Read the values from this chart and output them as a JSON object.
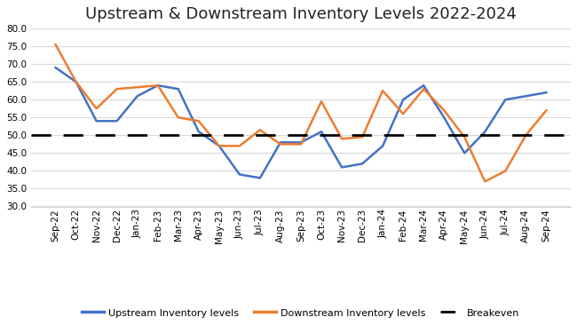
{
  "title": "Upstream & Downstream Inventory Levels 2022-2024",
  "categories": [
    "Sep-22",
    "Oct-22",
    "Nov-22",
    "Dec-22",
    "Jan-23",
    "Feb-23",
    "Mar-23",
    "Apr-23",
    "May-23",
    "Jun-23",
    "Jul-23",
    "Aug-23",
    "Sep-23",
    "Oct-23",
    "Nov-23",
    "Dec-23",
    "Jan-24",
    "Feb-24",
    "Mar-24",
    "Apr-24",
    "May-24",
    "Jun-24",
    "Jul-24",
    "Aug-24",
    "Sep-24"
  ],
  "upstream": [
    69,
    65,
    54,
    54,
    61,
    64,
    63,
    51,
    47,
    39,
    38,
    48,
    48,
    51,
    41,
    42,
    47,
    60,
    64,
    55,
    45,
    51,
    60,
    61,
    62
  ],
  "downstream": [
    75.5,
    65,
    57.5,
    63,
    63.5,
    64,
    55,
    54,
    47,
    47,
    51.5,
    47.5,
    47.5,
    59.5,
    49,
    49.5,
    62.5,
    56,
    63,
    57,
    49.5,
    37,
    40,
    50,
    57
  ],
  "breakeven": 50,
  "upstream_color": "#4472C4",
  "downstream_color": "#ED7D31",
  "breakeven_color": "#000000",
  "ylim": [
    30,
    80
  ],
  "yticks": [
    30.0,
    35.0,
    40.0,
    45.0,
    50.0,
    55.0,
    60.0,
    65.0,
    70.0,
    75.0,
    80.0
  ],
  "legend_labels": [
    "Upstream Inventory levels",
    "Downstream Inventory levels",
    "Breakeven"
  ],
  "plot_bg_color": "#ffffff",
  "fig_bg_color": "#ffffff",
  "grid_color": "#d9d9d9",
  "title_fontsize": 13,
  "tick_fontsize": 7.5
}
